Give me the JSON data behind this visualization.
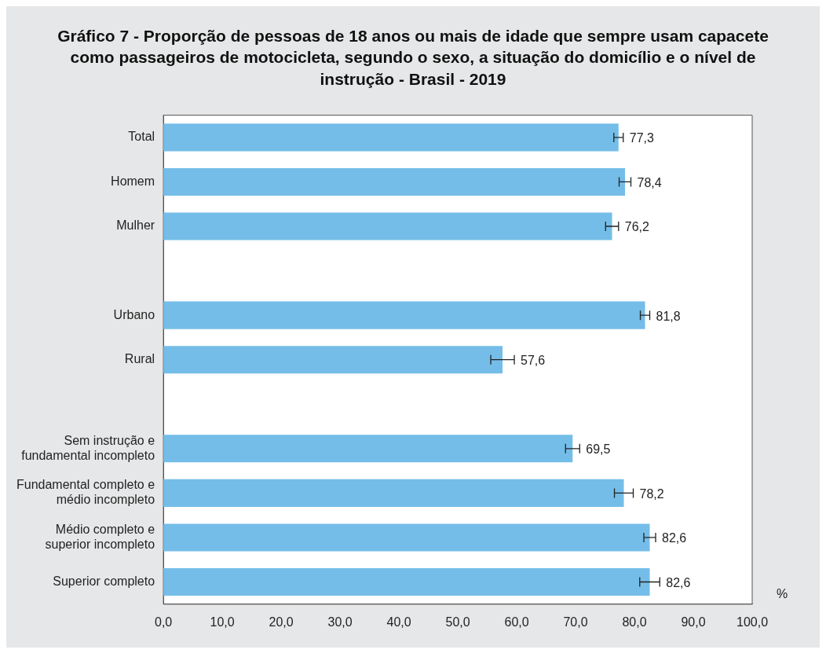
{
  "chart_data": {
    "type": "bar",
    "orientation": "horizontal",
    "title": "Gráfico 7 - Proporção de pessoas de 18 anos ou mais de idade que sempre usam capacete como passageiros de motocicleta, segundo o sexo, a situação do domicílio e o nível de instrução - Brasil - 2019",
    "xlabel": "%",
    "categories": [
      "Total",
      "Homem",
      "Mulher",
      null,
      "Urbano",
      "Rural",
      null,
      "Sem instrução e\nfundamental incompleto",
      "Fundamental completo e\nmédio incompleto",
      "Médio completo e\nsuperior incompleto",
      "Superior completo"
    ],
    "values": [
      77.3,
      78.4,
      76.2,
      null,
      81.8,
      57.6,
      null,
      69.5,
      78.2,
      82.6,
      82.6
    ],
    "errors": [
      0.8,
      1.0,
      1.1,
      null,
      0.8,
      2.0,
      null,
      1.2,
      1.6,
      1.0,
      1.7
    ],
    "value_labels": [
      "77,3",
      "78,4",
      "76,2",
      null,
      "81,8",
      "57,6",
      null,
      "69,5",
      "78,2",
      "82,6",
      "82,6"
    ],
    "color": "#74bde8",
    "xlim": [
      0,
      100
    ],
    "xticks": [
      {
        "value": 0,
        "label": "0,0"
      },
      {
        "value": 10,
        "label": "10,0"
      },
      {
        "value": 20,
        "label": "20,0"
      },
      {
        "value": 30,
        "label": "30,0"
      },
      {
        "value": 40,
        "label": "40,0"
      },
      {
        "value": 50,
        "label": "50,0"
      },
      {
        "value": 60,
        "label": "60,0"
      },
      {
        "value": 70,
        "label": "70,0"
      },
      {
        "value": 80,
        "label": "80,0"
      },
      {
        "value": 90,
        "label": "90,0"
      },
      {
        "value": 100,
        "label": "100,0"
      }
    ],
    "grid": false,
    "legend": false
  }
}
